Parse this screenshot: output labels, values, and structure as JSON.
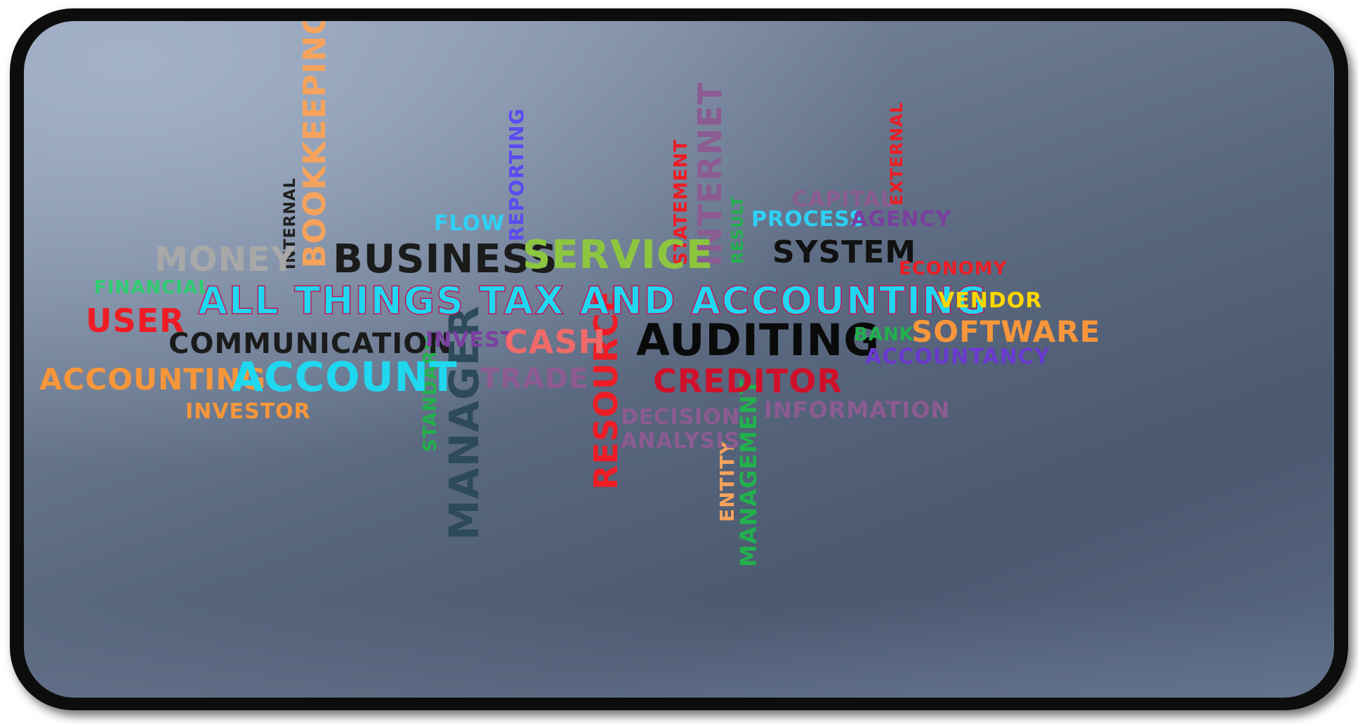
{
  "headline": "ALL THINGS TAX AND ACCOUNTING",
  "words": {
    "money": "MONEY",
    "internal": "INTERNAL",
    "bookkeeping": "BOOKKEEPING",
    "business": "BUSINESS",
    "flow": "FLOW",
    "reporting": "REPORTING",
    "service": "SERVICE",
    "statement": "STATEMENT",
    "internet": "INTERNET",
    "result": "RESULT",
    "capital": "CAPITAL",
    "external": "EXTERNAL",
    "process": "PROCESS",
    "agency": "AGENCY",
    "system": "SYSTEM",
    "economy": "ECONOMY",
    "financial": "FINANCIAL",
    "user": "USER",
    "vendor": "VENDOR",
    "communication": "COMMUNICATION",
    "invest": "INVEST",
    "cash": "CASH",
    "auditing": "AUDITING",
    "bank": "BANK",
    "software": "SOFTWARE",
    "accountancy": "ACCOUNTANCY",
    "accounting": "ACCOUNTING",
    "account": "ACCOUNT",
    "trade": "TRADE",
    "resource": "RESOURCE",
    "creditor": "CREDITOR",
    "standard": "STANDARD",
    "manager": "MANAGER",
    "investor": "INVESTOR",
    "decision": "DECISION",
    "information": "INFORMATION",
    "analysis": "ANALYSIS",
    "entity": "ENTITY",
    "management": "MANAGEMENT"
  },
  "colors": {
    "headline": "#1fd8f0",
    "headline_outline": "#c2185b",
    "frame": "#0d0d0d",
    "panel_top": "#a3b2c8",
    "panel_bottom": "#4a5870"
  }
}
